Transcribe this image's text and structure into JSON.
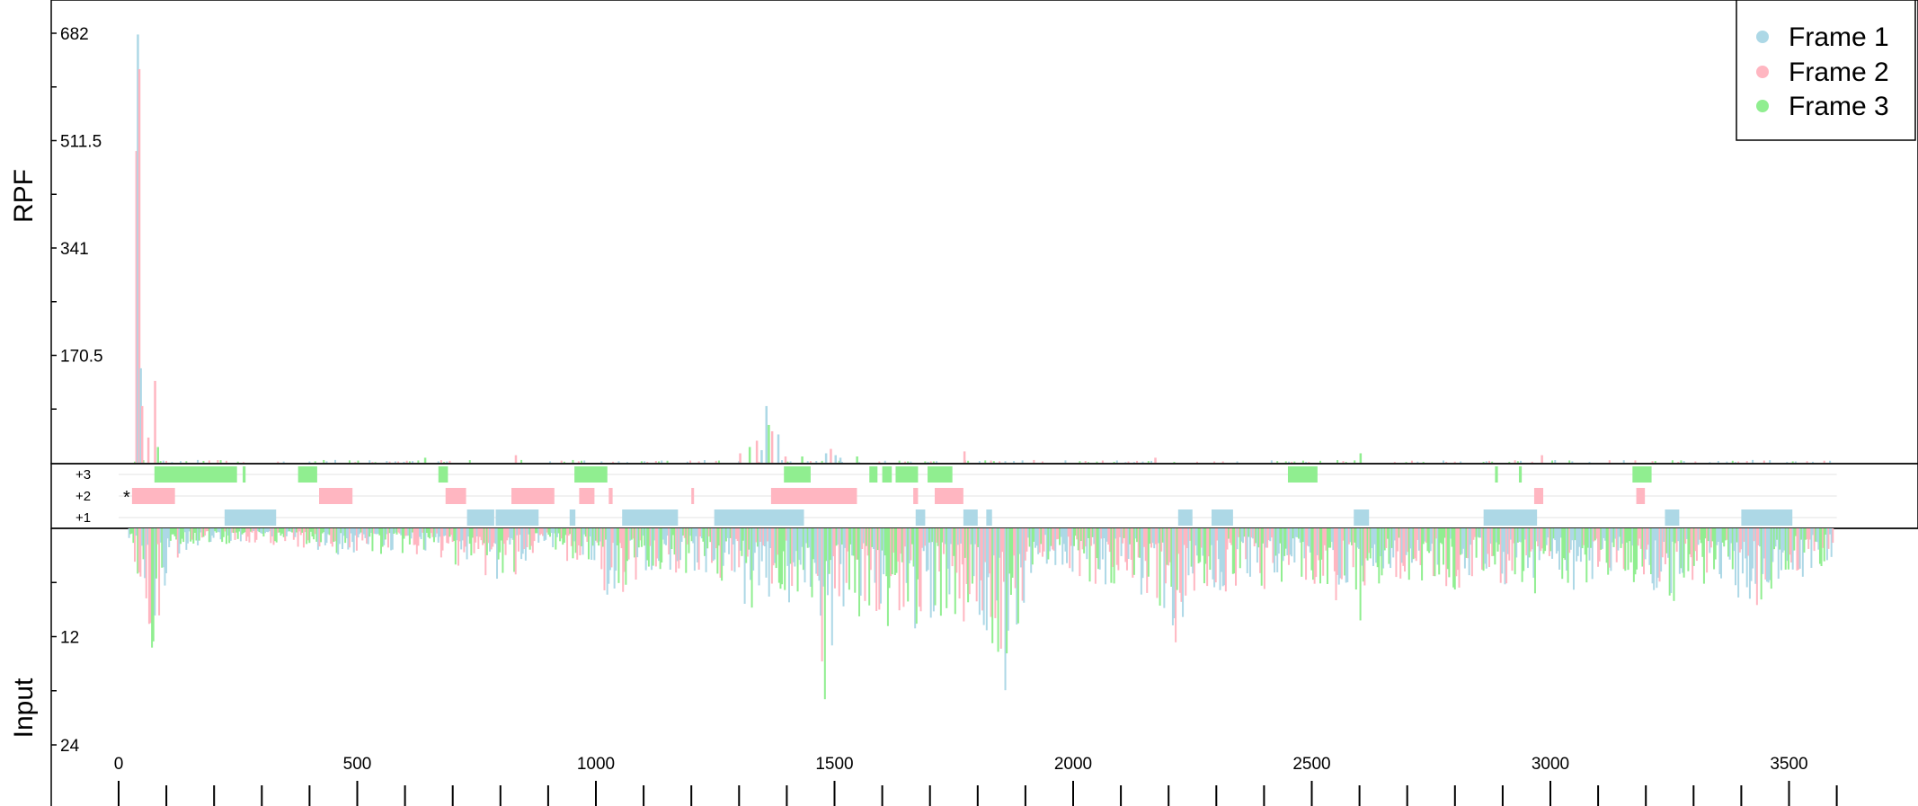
{
  "chart_data": {
    "type": "bar",
    "xlim": [
      0,
      3600
    ],
    "x_ticks": [
      "0",
      "500",
      "1000",
      "1500",
      "2000",
      "2500",
      "3000",
      "3500"
    ],
    "legend_position": "top-right",
    "legend": [
      {
        "label": "Frame 1",
        "color": "#add8e6"
      },
      {
        "label": "Frame 2",
        "color": "#ffb6c1"
      },
      {
        "label": "Frame 3",
        "color": "#90ee90"
      }
    ],
    "rpf": {
      "ylabel": "RPF",
      "ylim": [
        0,
        682
      ],
      "y_ticks": [
        "682",
        "511.5",
        "341",
        "170.5"
      ],
      "peaks": [
        {
          "x": 35,
          "frame": 2,
          "value": 495
        },
        {
          "x": 38,
          "frame": 1,
          "value": 680
        },
        {
          "x": 41,
          "frame": 2,
          "value": 625
        },
        {
          "x": 44,
          "frame": 1,
          "value": 150
        },
        {
          "x": 47,
          "frame": 2,
          "value": 90
        },
        {
          "x": 60,
          "frame": 2,
          "value": 40
        },
        {
          "x": 74,
          "frame": 2,
          "value": 130
        },
        {
          "x": 80,
          "frame": 3,
          "value": 25
        },
        {
          "x": 640,
          "frame": 3,
          "value": 8
        },
        {
          "x": 830,
          "frame": 2,
          "value": 12
        },
        {
          "x": 1300,
          "frame": 2,
          "value": 15
        },
        {
          "x": 1320,
          "frame": 3,
          "value": 25
        },
        {
          "x": 1335,
          "frame": 2,
          "value": 35
        },
        {
          "x": 1345,
          "frame": 1,
          "value": 20
        },
        {
          "x": 1355,
          "frame": 1,
          "value": 90
        },
        {
          "x": 1360,
          "frame": 3,
          "value": 60
        },
        {
          "x": 1367,
          "frame": 2,
          "value": 50
        },
        {
          "x": 1380,
          "frame": 1,
          "value": 45
        },
        {
          "x": 1395,
          "frame": 2,
          "value": 10
        },
        {
          "x": 1430,
          "frame": 3,
          "value": 10
        },
        {
          "x": 1480,
          "frame": 1,
          "value": 15
        },
        {
          "x": 1490,
          "frame": 2,
          "value": 22
        },
        {
          "x": 1500,
          "frame": 1,
          "value": 12
        },
        {
          "x": 1510,
          "frame": 1,
          "value": 8
        },
        {
          "x": 1545,
          "frame": 3,
          "value": 10
        },
        {
          "x": 1770,
          "frame": 2,
          "value": 18
        },
        {
          "x": 2170,
          "frame": 2,
          "value": 8
        },
        {
          "x": 2600,
          "frame": 3,
          "value": 15
        },
        {
          "x": 2980,
          "frame": 2,
          "value": 12
        }
      ]
    },
    "frames": {
      "labels": [
        "+3",
        "+2",
        "+1"
      ],
      "start_marker": "*",
      "orfs": [
        {
          "frame": 3,
          "segments": [
            [
              75,
              248
            ],
            [
              260,
              266
            ],
            [
              376,
              416
            ],
            [
              670,
              690
            ],
            [
              955,
              1024
            ],
            [
              1394,
              1450
            ],
            [
              1573,
              1590
            ],
            [
              1600,
              1620
            ],
            [
              1628,
              1675
            ],
            [
              1695,
              1747
            ],
            [
              2450,
              2512
            ],
            [
              2884,
              2890
            ],
            [
              2934,
              2940
            ],
            [
              3172,
              3212
            ]
          ]
        },
        {
          "frame": 2,
          "segments": [
            [
              28,
              118
            ],
            [
              420,
              490
            ],
            [
              685,
              728
            ],
            [
              823,
              913
            ],
            [
              965,
              997
            ],
            [
              1027,
              1035
            ],
            [
              1200,
              1205
            ],
            [
              1367,
              1547
            ],
            [
              1665,
              1675
            ],
            [
              1710,
              1770
            ],
            [
              2966,
              2985
            ],
            [
              3180,
              3198
            ]
          ]
        },
        {
          "frame": 1,
          "segments": [
            [
              222,
              330
            ],
            [
              730,
              787
            ],
            [
              790,
              880
            ],
            [
              945,
              957
            ],
            [
              1055,
              1172
            ],
            [
              1248,
              1436
            ],
            [
              1670,
              1690
            ],
            [
              1770,
              1800
            ],
            [
              1818,
              1830
            ],
            [
              2220,
              2250
            ],
            [
              2290,
              2335
            ],
            [
              2588,
              2620
            ],
            [
              2860,
              2972
            ],
            [
              3240,
              3270
            ],
            [
              3400,
              3507
            ]
          ]
        }
      ]
    },
    "input": {
      "ylabel": "Input",
      "ylim": [
        0,
        24
      ],
      "y_ticks": [
        "12",
        "24"
      ],
      "profile": [
        [
          20,
          2
        ],
        [
          40,
          6
        ],
        [
          55,
          11
        ],
        [
          70,
          15
        ],
        [
          85,
          10
        ],
        [
          100,
          5
        ],
        [
          150,
          2
        ],
        [
          250,
          2
        ],
        [
          350,
          2
        ],
        [
          450,
          3
        ],
        [
          550,
          3
        ],
        [
          620,
          3
        ],
        [
          700,
          4
        ],
        [
          750,
          5
        ],
        [
          800,
          7
        ],
        [
          850,
          4
        ],
        [
          900,
          3
        ],
        [
          950,
          4
        ],
        [
          1000,
          5
        ],
        [
          1030,
          9
        ],
        [
          1040,
          12
        ],
        [
          1060,
          9
        ],
        [
          1100,
          5
        ],
        [
          1150,
          5
        ],
        [
          1200,
          5
        ],
        [
          1250,
          6
        ],
        [
          1300,
          8
        ],
        [
          1340,
          10
        ],
        [
          1360,
          8
        ],
        [
          1400,
          9
        ],
        [
          1440,
          11
        ],
        [
          1470,
          15
        ],
        [
          1480,
          24
        ],
        [
          1500,
          12
        ],
        [
          1550,
          11
        ],
        [
          1600,
          11
        ],
        [
          1650,
          12
        ],
        [
          1700,
          10
        ],
        [
          1750,
          10
        ],
        [
          1800,
          12
        ],
        [
          1840,
          14
        ],
        [
          1860,
          19
        ],
        [
          1880,
          12
        ],
        [
          1900,
          7
        ],
        [
          1950,
          4
        ],
        [
          2000,
          5
        ],
        [
          2050,
          7
        ],
        [
          2100,
          6
        ],
        [
          2150,
          8
        ],
        [
          2200,
          10
        ],
        [
          2215,
          15
        ],
        [
          2240,
          9
        ],
        [
          2280,
          7
        ],
        [
          2300,
          8
        ],
        [
          2350,
          6
        ],
        [
          2400,
          7
        ],
        [
          2450,
          6
        ],
        [
          2500,
          7
        ],
        [
          2550,
          8
        ],
        [
          2590,
          10
        ],
        [
          2605,
          20
        ],
        [
          2620,
          9
        ],
        [
          2650,
          7
        ],
        [
          2700,
          6
        ],
        [
          2750,
          6
        ],
        [
          2800,
          7
        ],
        [
          2850,
          6
        ],
        [
          2900,
          7
        ],
        [
          2950,
          8
        ],
        [
          3000,
          6
        ],
        [
          3050,
          7
        ],
        [
          3080,
          8
        ],
        [
          3150,
          6
        ],
        [
          3200,
          7
        ],
        [
          3250,
          10
        ],
        [
          3300,
          6
        ],
        [
          3350,
          7
        ],
        [
          3400,
          8
        ],
        [
          3440,
          9
        ],
        [
          3480,
          8
        ],
        [
          3500,
          6
        ],
        [
          3590,
          4
        ]
      ]
    }
  }
}
